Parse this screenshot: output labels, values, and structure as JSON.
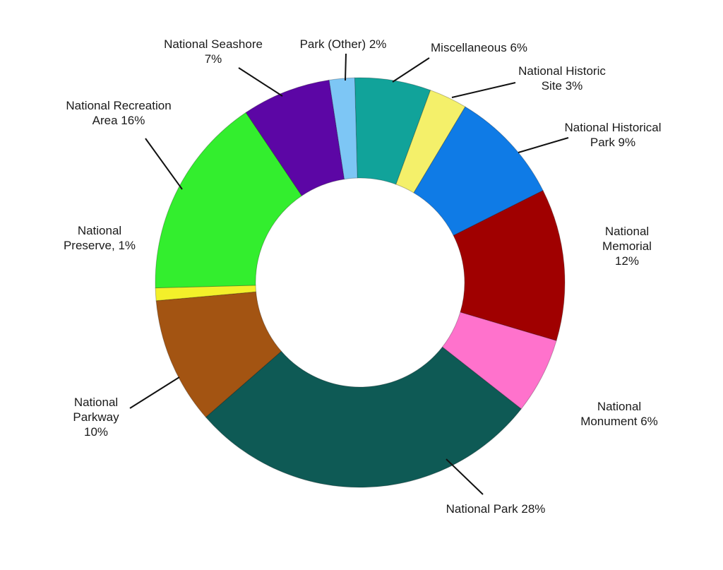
{
  "chart_data": {
    "type": "pie",
    "donut": true,
    "series": [
      {
        "name": "Miscellaneous",
        "label_lines": [
          "Miscellaneous 6%"
        ],
        "value": 6,
        "color": "#11a39a",
        "label_anchor": "start"
      },
      {
        "name": "National Historic Site",
        "label_lines": [
          "National Historic",
          "Site 3%"
        ],
        "value": 3,
        "color": "#f4f06a",
        "label_anchor": "middle"
      },
      {
        "name": "National Historical Park",
        "label_lines": [
          "National Historical",
          "Park 9%"
        ],
        "value": 9,
        "color": "#0f7be6",
        "label_anchor": "middle"
      },
      {
        "name": "National Memorial",
        "label_lines": [
          "National",
          "Memorial",
          "12%"
        ],
        "value": 12,
        "color": "#a00000",
        "label_anchor": "middle"
      },
      {
        "name": "National Monument",
        "label_lines": [
          "National",
          "Monument 6%"
        ],
        "value": 6,
        "color": "#ff72cc",
        "label_anchor": "middle"
      },
      {
        "name": "National Park",
        "label_lines": [
          "National Park 28%"
        ],
        "value": 28,
        "color": "#0e5a55",
        "label_anchor": "middle"
      },
      {
        "name": "National Parkway",
        "label_lines": [
          "National",
          "Parkway",
          "10%"
        ],
        "value": 10,
        "color": "#a35412",
        "label_anchor": "middle"
      },
      {
        "name": "National Preserve",
        "label_lines": [
          "National",
          "Preserve, 1%"
        ],
        "value": 1,
        "color": "#f3f02a",
        "label_anchor": "middle"
      },
      {
        "name": "National Recreation Area",
        "label_lines": [
          "National Recreation",
          "Area 16%"
        ],
        "value": 16,
        "color": "#33ee2e",
        "label_anchor": "middle"
      },
      {
        "name": "National Seashore",
        "label_lines": [
          "National Seashore",
          "7%"
        ],
        "value": 7,
        "color": "#5c06a5",
        "label_anchor": "middle"
      },
      {
        "name": "Park (Other)",
        "label_lines": [
          "Park (Other) 2%"
        ],
        "value": 2,
        "color": "#7dc6f5",
        "label_anchor": "middle"
      }
    ]
  }
}
